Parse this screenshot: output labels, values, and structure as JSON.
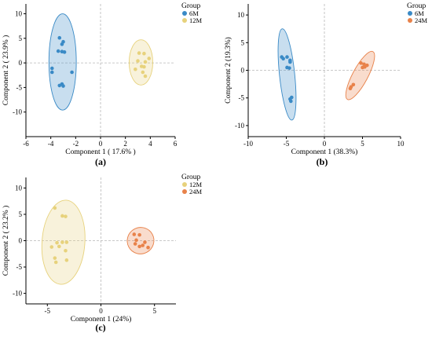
{
  "colors": {
    "6M": "#3a8ac6",
    "12M": "#e7d27c",
    "24M": "#e8824a",
    "axis": "#000000",
    "zero_line": "#b8b8b8"
  },
  "chart_data": [
    {
      "id": "a",
      "type": "scatter",
      "panel_label": "(a)",
      "xlabel": "Component  1  ( 17.6% )",
      "ylabel": "Component  2  ( 23.9% )",
      "xlim": [
        -6,
        6
      ],
      "ylim": [
        -15,
        12
      ],
      "xticks": [
        -6,
        -4,
        -2,
        0,
        2,
        4,
        6
      ],
      "yticks": [
        -10,
        -5,
        0,
        5,
        10
      ],
      "zero_lines": true,
      "legend": {
        "title": "Group",
        "placement": "top-right",
        "entries": [
          "6M",
          "12M"
        ]
      },
      "series": [
        {
          "name": "6M",
          "points": [
            [
              -3.3,
              5.1
            ],
            [
              -3.0,
              4.3
            ],
            [
              -3.1,
              3.8
            ],
            [
              -3.4,
              2.4
            ],
            [
              -3.1,
              2.3
            ],
            [
              -2.9,
              2.2
            ],
            [
              -3.9,
              -1.1
            ],
            [
              -3.9,
              -1.9
            ],
            [
              -2.3,
              -1.9
            ],
            [
              -3.1,
              -4.3
            ],
            [
              -3.3,
              -4.6
            ],
            [
              -3.0,
              -4.7
            ]
          ],
          "ellipse": {
            "cx": -3.05,
            "cy": 0.2,
            "rx": 1.1,
            "ry": 9.8
          }
        },
        {
          "name": "12M",
          "points": [
            [
              3.1,
              2.0
            ],
            [
              3.5,
              1.9
            ],
            [
              3.9,
              0.9
            ],
            [
              3.0,
              0.4
            ],
            [
              3.6,
              0.2
            ],
            [
              3.3,
              -0.7
            ],
            [
              3.5,
              -0.8
            ],
            [
              2.8,
              -1.3
            ],
            [
              3.4,
              -1.9
            ],
            [
              3.6,
              -2.7
            ]
          ],
          "ellipse": {
            "cx": 3.25,
            "cy": 0.1,
            "rx": 0.95,
            "ry": 4.6
          }
        }
      ]
    },
    {
      "id": "b",
      "type": "scatter",
      "panel_label": "(b)",
      "xlabel": "Component 1 (38.3%)",
      "ylabel": "Component 2 (19.3%)",
      "xlim": [
        -10,
        10
      ],
      "ylim": [
        -12,
        12
      ],
      "xticks": [
        -10,
        -5,
        0,
        5,
        10
      ],
      "yticks": [
        -10,
        -5,
        0,
        5,
        10
      ],
      "zero_lines": true,
      "legend": {
        "title": "Group",
        "placement": "top-right",
        "entries": [
          "6M",
          "24M"
        ]
      },
      "series": [
        {
          "name": "6M",
          "points": [
            [
              -5.6,
              2.4
            ],
            [
              -5.4,
              2.1
            ],
            [
              -4.9,
              2.4
            ],
            [
              -4.5,
              1.8
            ],
            [
              -4.5,
              1.5
            ],
            [
              -4.9,
              0.5
            ],
            [
              -4.6,
              0.4
            ],
            [
              -4.3,
              -4.9
            ],
            [
              -4.5,
              -5.2
            ],
            [
              -4.4,
              -5.6
            ]
          ],
          "ellipse": {
            "cx": -4.9,
            "cy": -0.75,
            "rx": 1.0,
            "ry": 8.3,
            "angle": -6
          }
        },
        {
          "name": "24M",
          "points": [
            [
              4.8,
              1.3
            ],
            [
              5.2,
              1.1
            ],
            [
              5.6,
              0.9
            ],
            [
              5.3,
              0.6
            ],
            [
              5.0,
              0.5
            ],
            [
              3.8,
              -2.6
            ],
            [
              3.5,
              -3.0
            ],
            [
              3.4,
              -3.3
            ]
          ],
          "ellipse": {
            "cx": 4.7,
            "cy": -0.95,
            "rx": 1.0,
            "ry": 4.9,
            "angle": 28
          }
        }
      ]
    },
    {
      "id": "c",
      "type": "scatter",
      "panel_label": "(c)",
      "xlabel": "Component 1 (24%)",
      "ylabel": "Component  2  ( 23.2% )",
      "xlim": [
        -7,
        7
      ],
      "ylim": [
        -12,
        12
      ],
      "xticks": [
        -5,
        0,
        5
      ],
      "yticks": [
        -10,
        -5,
        0,
        5,
        10
      ],
      "zero_lines": true,
      "legend": {
        "title": "Group",
        "placement": "top-right",
        "entries": [
          "12M",
          "24M"
        ]
      },
      "series": [
        {
          "name": "12M",
          "points": [
            [
              -4.3,
              6.2
            ],
            [
              -3.6,
              4.7
            ],
            [
              -3.3,
              4.6
            ],
            [
              -4.1,
              -0.4
            ],
            [
              -3.6,
              -0.3
            ],
            [
              -3.2,
              -0.3
            ],
            [
              -4.6,
              -1.2
            ],
            [
              -3.9,
              -1.1
            ],
            [
              -3.3,
              -1.9
            ],
            [
              -4.3,
              -3.3
            ],
            [
              -3.2,
              -3.7
            ],
            [
              -4.2,
              -4.1
            ]
          ],
          "ellipse": {
            "cx": -3.5,
            "cy": -0.3,
            "rx": 2.0,
            "ry": 8.0,
            "angle": 4
          }
        },
        {
          "name": "24M",
          "points": [
            [
              3.1,
              1.2
            ],
            [
              3.6,
              1.1
            ],
            [
              3.3,
              0.1
            ],
            [
              4.1,
              -0.3
            ],
            [
              3.2,
              -0.6
            ],
            [
              3.9,
              -0.9
            ],
            [
              3.6,
              -1.1
            ],
            [
              4.4,
              -1.3
            ]
          ],
          "ellipse": {
            "cx": 3.7,
            "cy": 0.0,
            "rx": 1.25,
            "ry": 2.5,
            "angle": -28
          }
        }
      ]
    }
  ]
}
